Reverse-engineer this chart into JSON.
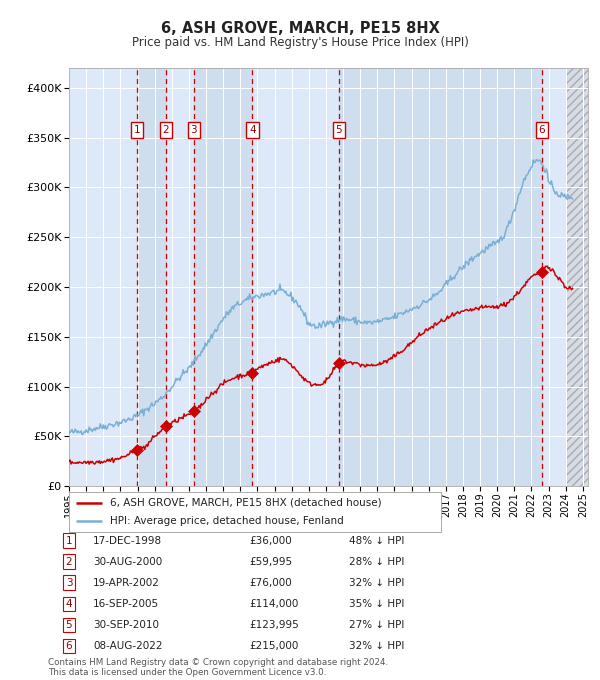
{
  "title": "6, ASH GROVE, MARCH, PE15 8HX",
  "subtitle": "Price paid vs. HM Land Registry's House Price Index (HPI)",
  "red_label": "6, ASH GROVE, MARCH, PE15 8HX (detached house)",
  "blue_label": "HPI: Average price, detached house, Fenland",
  "footnote1": "Contains HM Land Registry data © Crown copyright and database right 2024.",
  "footnote2": "This data is licensed under the Open Government Licence v3.0.",
  "transactions": [
    {
      "num": 1,
      "date": "17-DEC-1998",
      "price": 36000,
      "pct": "48% ↓ HPI",
      "year": 1998.96
    },
    {
      "num": 2,
      "date": "30-AUG-2000",
      "price": 59995,
      "pct": "28% ↓ HPI",
      "year": 2000.66
    },
    {
      "num": 3,
      "date": "19-APR-2002",
      "price": 76000,
      "pct": "32% ↓ HPI",
      "year": 2002.29
    },
    {
      "num": 4,
      "date": "16-SEP-2005",
      "price": 114000,
      "pct": "35% ↓ HPI",
      "year": 2005.71
    },
    {
      "num": 5,
      "date": "30-SEP-2010",
      "price": 123995,
      "pct": "27% ↓ HPI",
      "year": 2010.75
    },
    {
      "num": 6,
      "date": "08-AUG-2022",
      "price": 215000,
      "pct": "32% ↓ HPI",
      "year": 2022.6
    }
  ],
  "ylim": [
    0,
    420000
  ],
  "xlim_min": 1995,
  "xlim_max": 2025.3,
  "plot_bg": "#dde8f8",
  "grid_color": "#ffffff",
  "red_color": "#cc0000",
  "blue_color": "#7ab0d4",
  "shade_color": "#c5d8ea",
  "hatch_color": "#c8c8c8",
  "hpi_key_years": [
    1995,
    1995.5,
    1996,
    1996.5,
    1997,
    1997.5,
    1998,
    1998.5,
    1999,
    1999.5,
    2000,
    2000.5,
    2001,
    2001.5,
    2002,
    2002.5,
    2003,
    2003.5,
    2004,
    2004.5,
    2005,
    2005.5,
    2006,
    2006.5,
    2007,
    2007.3,
    2007.6,
    2008,
    2008.5,
    2009,
    2009.5,
    2010,
    2010.5,
    2011,
    2011.5,
    2012,
    2012.5,
    2013,
    2013.5,
    2014,
    2014.5,
    2015,
    2015.5,
    2016,
    2016.5,
    2017,
    2017.5,
    2018,
    2018.5,
    2019,
    2019.5,
    2020,
    2020.5,
    2021,
    2021.5,
    2022,
    2022.3,
    2022.6,
    2022.9,
    2023,
    2023.3,
    2023.6,
    2024,
    2024.3
  ],
  "hpi_key_vals": [
    54000,
    54500,
    56000,
    58000,
    60000,
    62000,
    64000,
    67000,
    71000,
    77000,
    83000,
    90000,
    100000,
    110000,
    118000,
    130000,
    142000,
    155000,
    168000,
    178000,
    184000,
    188000,
    191000,
    193000,
    195000,
    196000,
    195000,
    190000,
    180000,
    163000,
    160000,
    163000,
    166000,
    168000,
    167000,
    165000,
    164000,
    165000,
    167000,
    170000,
    174000,
    178000,
    182000,
    187000,
    193000,
    202000,
    212000,
    220000,
    228000,
    234000,
    240000,
    244000,
    255000,
    278000,
    305000,
    322000,
    328000,
    325000,
    315000,
    305000,
    298000,
    293000,
    290000,
    291000
  ],
  "red_key_years": [
    1995,
    1996,
    1997,
    1998,
    1998.96,
    1999.2,
    1999.5,
    2000,
    2000.66,
    2001,
    2001.5,
    2002,
    2002.29,
    2002.8,
    2003,
    2003.5,
    2004,
    2004.5,
    2005,
    2005.71,
    2006,
    2006.5,
    2007,
    2007.5,
    2008,
    2008.5,
    2009,
    2009.5,
    2010,
    2010.75,
    2011,
    2011.5,
    2012,
    2012.5,
    2013,
    2013.5,
    2014,
    2014.5,
    2015,
    2015.5,
    2016,
    2016.5,
    2017,
    2017.5,
    2018,
    2018.5,
    2019,
    2019.5,
    2020,
    2020.5,
    2021,
    2021.5,
    2022.0,
    2022.6,
    2022.9,
    2023.2,
    2023.5,
    2023.8,
    2024,
    2024.3
  ],
  "red_key_vals": [
    24000,
    24000,
    25000,
    28000,
    36000,
    38000,
    40000,
    50000,
    59995,
    63000,
    68000,
    72000,
    76000,
    82000,
    88000,
    95000,
    103000,
    108000,
    111000,
    114000,
    118000,
    122000,
    126000,
    128000,
    122000,
    112000,
    103000,
    102000,
    105000,
    123995,
    126000,
    124000,
    122000,
    121000,
    122000,
    125000,
    130000,
    137000,
    144000,
    152000,
    158000,
    163000,
    168000,
    172000,
    175000,
    177000,
    179000,
    180000,
    180000,
    183000,
    190000,
    200000,
    210000,
    215000,
    222000,
    218000,
    210000,
    205000,
    200000,
    198000
  ],
  "shade_ranges": [
    [
      1998.96,
      2000.66
    ],
    [
      2002.29,
      2005.71
    ],
    [
      2010.75,
      2022.6
    ]
  ]
}
